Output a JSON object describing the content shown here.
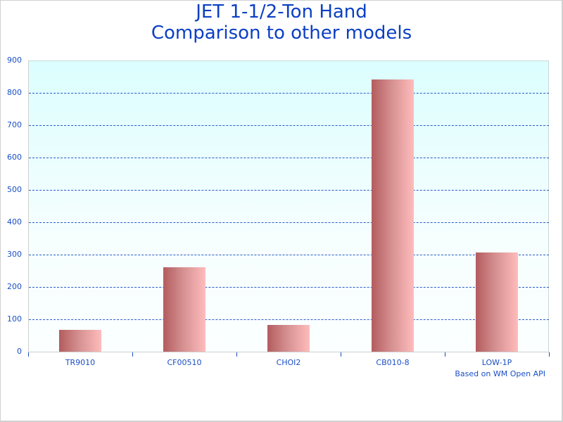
{
  "chart": {
    "title_line1": "JET 1-1/2-Ton Hand",
    "title_line2": "Comparison to other models",
    "credit": "Based on WM Open API",
    "y_ticks": [
      "900",
      "800",
      "700",
      "600",
      "500",
      "400",
      "300",
      "200",
      "100",
      "0"
    ],
    "x_labels": [
      "TR9010",
      "CF00510",
      "CHOI2",
      "CB010-8",
      "LOW-1P"
    ],
    "colors": {
      "title": "#0b3fc4",
      "axis_text": "#1a4fc4",
      "gridline": "#2a5bc8",
      "bar_dark": "#b35c5e",
      "bar_light": "#ffbcbc",
      "plot_bg_top": "#dcfefe",
      "plot_bg_bottom": "#fbffff"
    }
  },
  "chart_data": {
    "type": "bar",
    "title": "JET 1-1/2-Ton Hand Comparison to other models",
    "categories": [
      "TR9010",
      "CF00510",
      "CHOI2",
      "CB010-8",
      "LOW-1P"
    ],
    "values": [
      67,
      261,
      83,
      841,
      307
    ],
    "xlabel": "",
    "ylabel": "",
    "ylim": [
      0,
      900
    ],
    "y_tick_step": 100,
    "grid": true,
    "grid_style": "dashed horizontal",
    "legend": "none",
    "annotation": "Based on WM Open API"
  }
}
